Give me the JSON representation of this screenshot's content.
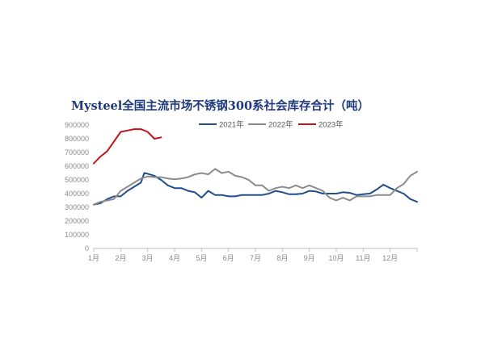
{
  "title": "Mysteel全国主流市场不锈钢300系社会库存合计（吨）",
  "chart_data": {
    "type": "line",
    "title": "Mysteel全国主流市场不锈钢300系社会库存合计（吨）",
    "xlabel": "",
    "ylabel": "",
    "ylim": [
      0,
      900000
    ],
    "y_ticks": [
      0,
      100000,
      200000,
      300000,
      400000,
      500000,
      600000,
      700000,
      800000,
      900000
    ],
    "x_ticks": [
      "1月",
      "2月",
      "3月",
      "4月",
      "5月",
      "6月",
      "7月",
      "8月",
      "9月",
      "10月",
      "11月",
      "12月"
    ],
    "x_range_weeks": [
      0,
      48
    ],
    "grid": false,
    "legend_position": "top",
    "series": [
      {
        "name": "2021年",
        "color": "#1f4e8c",
        "x": [
          0,
          1,
          2,
          3,
          4,
          5,
          6,
          7,
          7.5,
          8,
          9,
          10,
          11,
          12,
          13,
          14,
          15,
          16,
          17,
          18,
          19,
          20,
          21,
          22,
          23,
          24,
          25,
          26,
          27,
          28,
          29,
          30,
          31,
          32,
          33,
          34,
          35,
          36,
          37,
          38,
          39,
          40,
          41,
          42,
          43,
          44,
          45,
          46,
          47,
          48
        ],
        "values": [
          320000,
          330000,
          360000,
          380000,
          380000,
          420000,
          450000,
          480000,
          550000,
          545000,
          530000,
          500000,
          460000,
          440000,
          440000,
          420000,
          410000,
          370000,
          420000,
          390000,
          390000,
          380000,
          380000,
          390000,
          390000,
          390000,
          390000,
          400000,
          420000,
          410000,
          395000,
          395000,
          400000,
          420000,
          415000,
          400000,
          400000,
          400000,
          410000,
          405000,
          390000,
          395000,
          400000,
          430000,
          465000,
          440000,
          420000,
          400000,
          360000,
          340000
        ]
      },
      {
        "name": "2022年",
        "color": "#8c8c8c",
        "x": [
          0,
          1,
          2,
          3,
          4,
          5,
          6,
          7,
          8,
          9,
          10,
          11,
          12,
          13,
          14,
          15,
          16,
          17,
          18,
          19,
          20,
          21,
          22,
          23,
          24,
          25,
          26,
          27,
          28,
          29,
          30,
          31,
          32,
          33,
          34,
          35,
          36,
          37,
          38,
          39,
          40,
          41,
          42,
          43,
          44,
          45,
          46,
          47,
          48
        ],
        "values": [
          320000,
          340000,
          350000,
          360000,
          420000,
          450000,
          480000,
          510000,
          525000,
          520000,
          520000,
          510000,
          505000,
          510000,
          520000,
          540000,
          550000,
          540000,
          580000,
          550000,
          560000,
          530000,
          520000,
          500000,
          460000,
          460000,
          420000,
          440000,
          450000,
          440000,
          460000,
          440000,
          460000,
          440000,
          420000,
          370000,
          350000,
          370000,
          350000,
          380000,
          380000,
          380000,
          390000,
          390000,
          390000,
          440000,
          470000,
          530000,
          560000
        ]
      },
      {
        "name": "2023年",
        "color": "#c0151b",
        "x": [
          0,
          1,
          2,
          3,
          4,
          5,
          6,
          7,
          8,
          9,
          10
        ],
        "values": [
          620000,
          670000,
          710000,
          780000,
          850000,
          860000,
          870000,
          870000,
          850000,
          800000,
          810000
        ]
      }
    ]
  }
}
